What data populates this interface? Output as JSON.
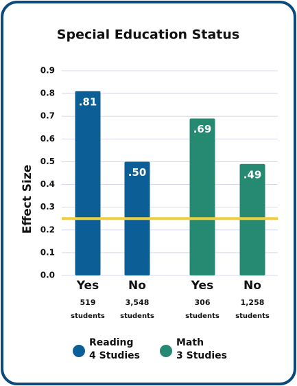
{
  "chart_data": {
    "type": "bar",
    "title": "Special Education Status",
    "y_label": "Effect Size",
    "ylim": [
      0,
      0.9
    ],
    "yticks": [
      {
        "value": 0,
        "label": "0.0"
      },
      0.1,
      0.2,
      0.3,
      0.4,
      0.5,
      0.6,
      0.7,
      0.8,
      0.9
    ],
    "grid": true,
    "reference_line": {
      "value": 0.25,
      "color": "#f2cf3a"
    },
    "sample_unit": "students",
    "series": [
      {
        "name": "Reading",
        "subtitle": "4 Studies",
        "color": "#0b5f96",
        "categories": [
          "Yes",
          "No"
        ],
        "sample_sizes": [
          "519",
          "3,548"
        ],
        "values": [
          0.81,
          0.5
        ],
        "value_labels": [
          ".81",
          ".50"
        ]
      },
      {
        "name": "Math",
        "subtitle": "3 Studies",
        "color": "#268a72",
        "categories": [
          "Yes",
          "No"
        ],
        "sample_sizes": [
          "306",
          "1,258"
        ],
        "values": [
          0.69,
          0.49
        ],
        "value_labels": [
          ".69",
          ".49"
        ]
      }
    ]
  }
}
